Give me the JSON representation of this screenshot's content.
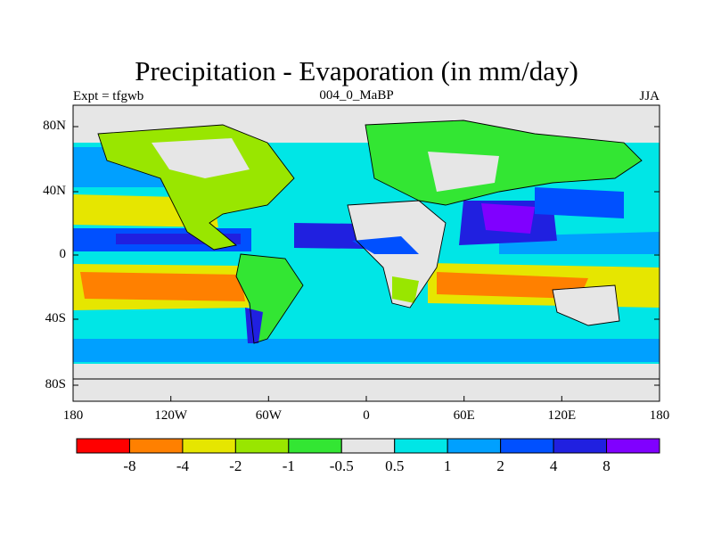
{
  "title": "Precipitation - Evaporation (in mm/day)",
  "left_subtitle": "Expt = tfgwb",
  "center_subtitle": "004_0_MaBP",
  "right_subtitle": "JJA",
  "lat_ticks": [
    "80N",
    "40N",
    "0",
    "40S",
    "80S"
  ],
  "lon_ticks": [
    "180",
    "120W",
    "60W",
    "0",
    "60E",
    "120E",
    "180"
  ],
  "colorbar": {
    "labels": [
      "-8",
      "-4",
      "-2",
      "-1",
      "-0.5",
      "0.5",
      "1",
      "2",
      "4",
      "8"
    ],
    "colors": [
      "#ff0000",
      "#ff8000",
      "#e6e600",
      "#99e600",
      "#33e633",
      "#e6e6e6",
      "#00e6e6",
      "#00a0ff",
      "#0050ff",
      "#2020e0",
      "#8000ff"
    ]
  },
  "map": {
    "lon_range": [
      -180,
      180
    ],
    "lat_range": [
      -90,
      90
    ]
  }
}
